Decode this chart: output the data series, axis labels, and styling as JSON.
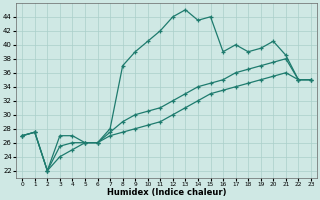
{
  "xlabel": "Humidex (Indice chaleur)",
  "bg_color": "#cfe8e4",
  "line_color": "#1e7b6e",
  "grid_color": "#aacfca",
  "xlim": [
    -0.5,
    23.5
  ],
  "ylim": [
    21,
    46
  ],
  "xticks": [
    0,
    1,
    2,
    3,
    4,
    5,
    6,
    7,
    8,
    9,
    10,
    11,
    12,
    13,
    14,
    15,
    16,
    17,
    18,
    19,
    20,
    21,
    22,
    23
  ],
  "yticks": [
    22,
    24,
    26,
    28,
    30,
    32,
    34,
    36,
    38,
    40,
    42,
    44
  ],
  "line_main": {
    "x": [
      0,
      1,
      2,
      3,
      4,
      5,
      6,
      7,
      8,
      9,
      10,
      11,
      12,
      13,
      14,
      15,
      16,
      17,
      18,
      19,
      20,
      21,
      22,
      23
    ],
    "y": [
      27,
      27.5,
      22,
      27,
      27,
      26,
      26,
      28,
      37,
      39,
      40.5,
      42,
      44,
      45,
      43.5,
      44,
      39,
      40,
      39,
      39.5,
      40.5,
      38.5,
      35,
      35
    ]
  },
  "line_low": {
    "x": [
      0,
      1,
      2,
      3,
      4,
      5,
      6,
      7,
      8,
      9,
      10,
      11,
      12,
      13,
      14,
      15,
      16,
      17,
      18,
      19,
      20,
      21,
      22,
      23
    ],
    "y": [
      27,
      27.5,
      22,
      24,
      25,
      26,
      26,
      27,
      27.5,
      28,
      28.5,
      29,
      30,
      31,
      32,
      33,
      33.5,
      34,
      34.5,
      35,
      35.5,
      36,
      35,
      35
    ]
  },
  "line_mid": {
    "x": [
      0,
      1,
      2,
      3,
      4,
      5,
      6,
      7,
      8,
      9,
      10,
      11,
      12,
      13,
      14,
      15,
      16,
      17,
      18,
      19,
      20,
      21,
      22,
      23
    ],
    "y": [
      27,
      27.5,
      22,
      25.5,
      26,
      26,
      26,
      27.5,
      29,
      30,
      30.5,
      31,
      32,
      33,
      34,
      34.5,
      35,
      36,
      36.5,
      37,
      37.5,
      38,
      35,
      35
    ]
  }
}
